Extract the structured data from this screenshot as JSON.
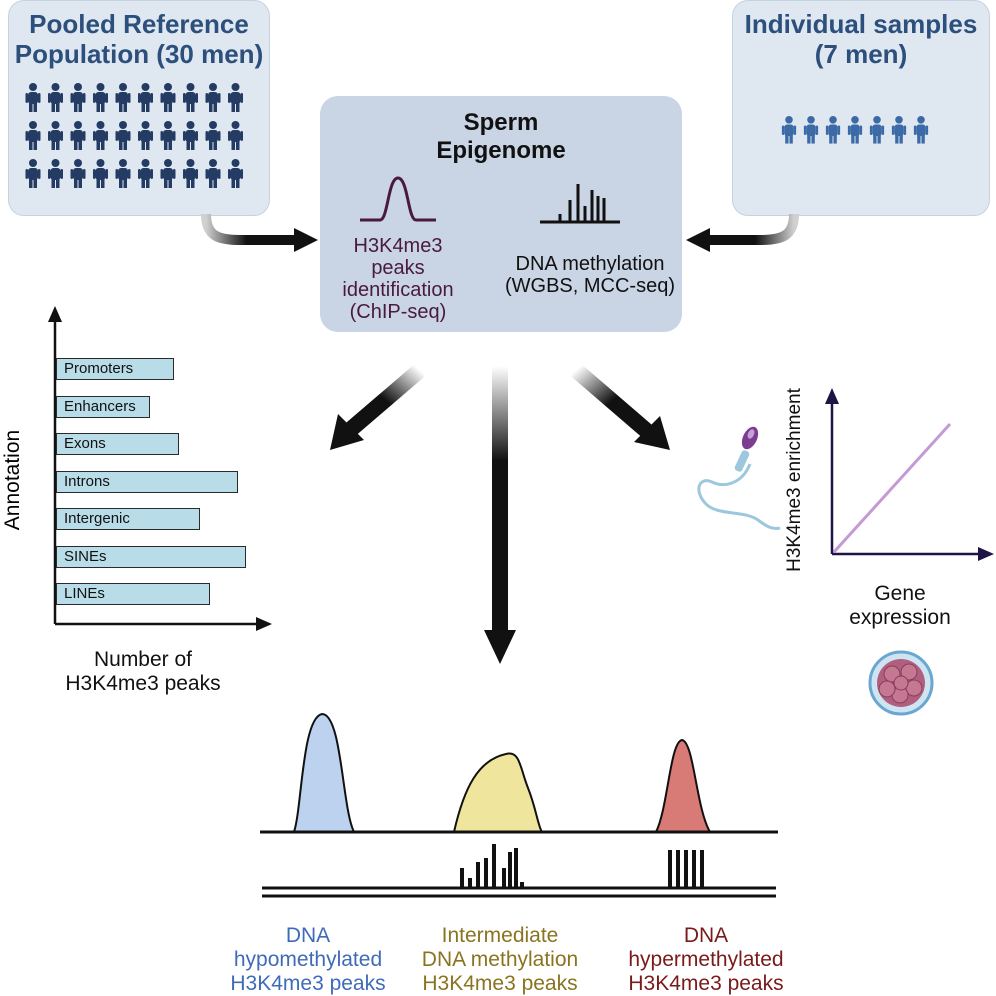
{
  "left_panel": {
    "title_line1": "Pooled Reference",
    "title_line2": "Population (30 men)",
    "icon": "people-group-icon",
    "people_count": 30
  },
  "right_panel": {
    "title_line1": "Individual samples",
    "title_line2": "(7 men)",
    "icon": "people-group-icon",
    "people_count": 7
  },
  "center_panel": {
    "title_line1": "Sperm",
    "title_line2": "Epigenome",
    "h3k4_label": [
      "H3K4me3",
      "peaks",
      "identification",
      "(ChIP-seq)"
    ],
    "dna_label": [
      "DNA methylation",
      "(WGBS, MCC-seq)"
    ],
    "h3k4_icon": "peak-curve-icon",
    "dna_icon": "methylation-bars-icon"
  },
  "annotation_chart": {
    "ylabel": "Annotation",
    "xlabel_line1": "Number of",
    "xlabel_line2": "H3K4me3 peaks",
    "categories": [
      "Promoters",
      "Enhancers",
      "Exons",
      "Introns",
      "Intergenic",
      "SINEs",
      "LINEs"
    ],
    "values": [
      115,
      92,
      120,
      178,
      140,
      185,
      150
    ]
  },
  "expression_chart": {
    "ylabel": "H3K4me3 enrichment",
    "xlabel_line1": "Gene",
    "xlabel_line2": "expression",
    "sperm_icon": "sperm-icon",
    "embryo_icon": "embryo-icon"
  },
  "bottom": {
    "hypo": [
      "DNA",
      "hypomethylated",
      "H3K4me3 peaks"
    ],
    "inter": [
      "Intermediate",
      "DNA methylation",
      "H3K4me3 peaks"
    ],
    "hyper": [
      "DNA",
      "hypermethylated",
      "H3K4me3 peaks"
    ]
  },
  "colors": {
    "hypo": "#3f6bb8",
    "inter": "#8a7420",
    "hyper": "#7a1a1a",
    "panel_title": "#2c4f7c",
    "h3k4_text": "#4a1a3c",
    "line_chart": "#c49ad6"
  }
}
